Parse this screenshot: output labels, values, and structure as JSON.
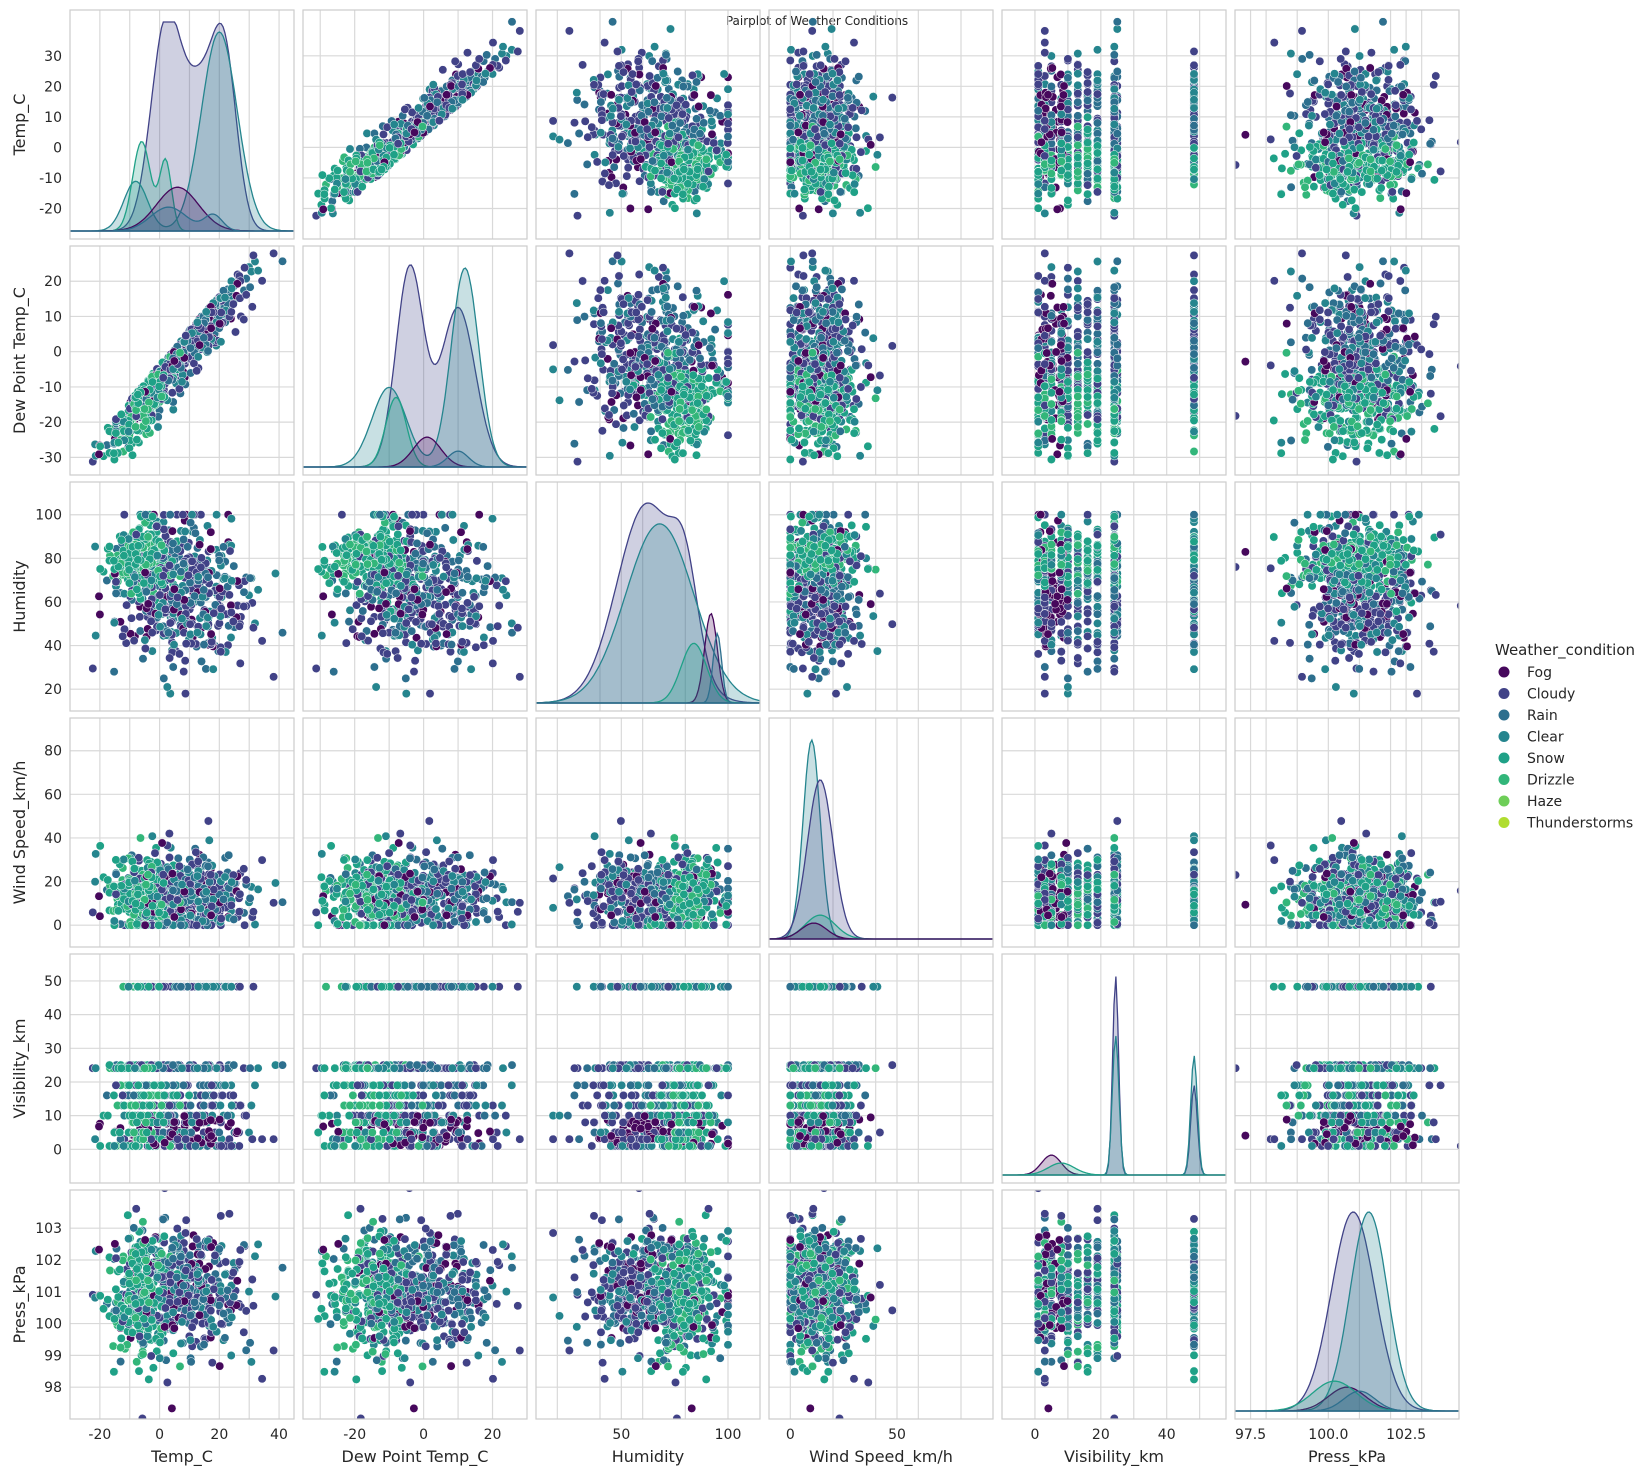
{
  "figure": {
    "title": "Pairplot of Weather Conditions"
  },
  "chart_data": {
    "type": "pairplot",
    "title": "Pairplot of Weather Conditions",
    "hue": "Weather_condition",
    "variables": [
      {
        "name": "Temp_C",
        "range": [
          -30,
          45
        ],
        "ticks": [
          -20,
          -10,
          0,
          10,
          20,
          30
        ],
        "xticks": [
          -20,
          0,
          20,
          40
        ]
      },
      {
        "name": "Dew Point Temp_C",
        "range": [
          -35,
          30
        ],
        "ticks": [
          -30,
          -20,
          -10,
          0,
          10,
          20
        ],
        "xticks": [
          -20,
          0,
          20
        ]
      },
      {
        "name": "Humidity",
        "range": [
          10,
          115
        ],
        "ticks": [
          20,
          40,
          60,
          80,
          100
        ],
        "xticks": [
          50,
          100
        ]
      },
      {
        "name": "Wind Speed_km/h",
        "range": [
          -10,
          95
        ],
        "ticks": [
          0,
          20,
          40,
          60,
          80
        ],
        "xticks": [
          0,
          50
        ]
      },
      {
        "name": "Visibility_km",
        "range": [
          -10,
          58
        ],
        "ticks": [
          0,
          10,
          20,
          30,
          40,
          50
        ],
        "xticks": [
          0,
          20,
          40
        ]
      },
      {
        "name": "Press_kPa",
        "range": [
          97,
          104.2
        ],
        "ticks": [
          98,
          99,
          100,
          101,
          102,
          103
        ],
        "xticks": [
          97.5,
          100.0,
          102.5
        ],
        "xtick_labels": [
          "97.5",
          "100.0",
          "102.5"
        ]
      }
    ],
    "legend": {
      "title": "Weather_condition",
      "placement": "right-center",
      "entries": [
        {
          "name": "Fog",
          "color": "#46085c"
        },
        {
          "name": "Cloudy",
          "color": "#414287"
        },
        {
          "name": "Rain",
          "color": "#2d6f8e"
        },
        {
          "name": "Clear",
          "color": "#25858e"
        },
        {
          "name": "Snow",
          "color": "#1fa187"
        },
        {
          "name": "Drizzle",
          "color": "#32b67a"
        },
        {
          "name": "Haze",
          "color": "#6ece58"
        },
        {
          "name": "Thunderstorms",
          "color": "#b0dd2f"
        }
      ]
    },
    "grid": true,
    "diagonal": "kde"
  }
}
